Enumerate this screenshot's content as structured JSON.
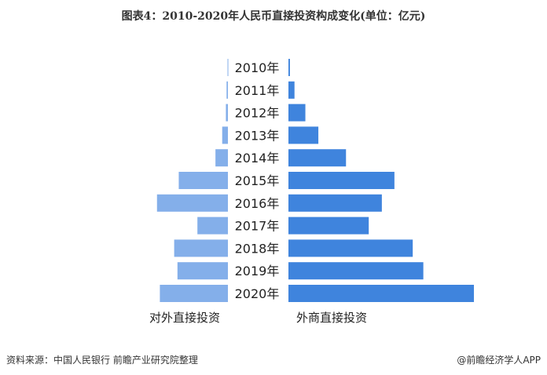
{
  "chart_data": {
    "type": "bar",
    "orientation": "horizontal-butterfly",
    "title": "图表4：2010-2020年人民币直接投资构成变化(单位：亿元)",
    "categories": [
      "2010年",
      "2011年",
      "2012年",
      "2013年",
      "2014年",
      "2015年",
      "2016年",
      "2017年",
      "2018年",
      "2019年",
      "2020年"
    ],
    "series": [
      {
        "name": "对外直接投资",
        "side": "left",
        "color": "#84afea",
        "values": [
          57,
          201,
          304,
          856,
          1866,
          7362,
          10619,
          4568,
          8048,
          7555,
          10191
        ]
      },
      {
        "name": "外商直接投资",
        "side": "right",
        "color": "#3f84dd",
        "values": [
          224,
          907,
          2536,
          4481,
          8620,
          15871,
          13988,
          12026,
          18613,
          20199,
          27773
        ]
      }
    ],
    "grid": false,
    "legend": "bottom"
  },
  "footer": {
    "source": "资料来源：中国人民银行 前瞻产业研究院整理",
    "credit": "@前瞻经济学人APP"
  }
}
